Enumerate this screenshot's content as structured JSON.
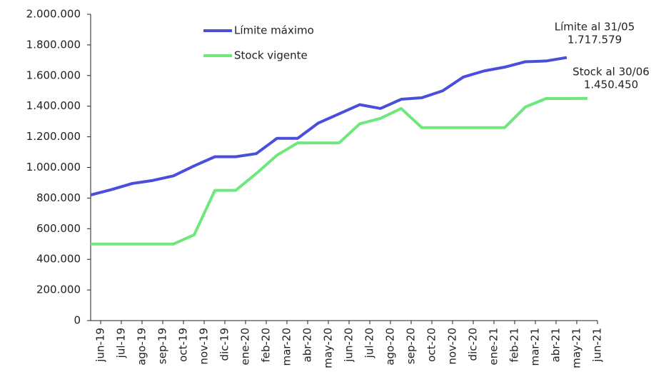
{
  "chart_data": {
    "type": "line",
    "categories": [
      "jun-19",
      "jul-19",
      "ago-19",
      "sep-19",
      "oct-19",
      "nov-19",
      "dic-19",
      "ene-20",
      "feb-20",
      "mar-20",
      "abr-20",
      "may-20",
      "jun-20",
      "jul-20",
      "ago-20",
      "sep-20",
      "oct-20",
      "nov-20",
      "dic-20",
      "ene-21",
      "feb-21",
      "mar-21",
      "abr-21",
      "may-21",
      "jun-21"
    ],
    "series": [
      {
        "name": "Límite máximo",
        "color": "#4b4ddb",
        "values": [
          820000,
          855000,
          895000,
          915000,
          945000,
          1010000,
          1070000,
          1070000,
          1090000,
          1190000,
          1190000,
          1290000,
          1350000,
          1410000,
          1385000,
          1445000,
          1455000,
          1500000,
          1590000,
          1630000,
          1655000,
          1690000,
          1695000,
          1717579,
          null
        ]
      },
      {
        "name": "Stock vigente",
        "color": "#6ee87d",
        "values": [
          500000,
          500000,
          500000,
          500000,
          500000,
          560000,
          850000,
          850000,
          960000,
          1080000,
          1160000,
          1160000,
          1160000,
          1285000,
          1320000,
          1385000,
          1260000,
          1260000,
          1260000,
          1260000,
          1260000,
          1395000,
          1450000,
          1450000,
          1450450
        ]
      }
    ],
    "ylim": [
      0,
      2000000
    ],
    "yticks": [
      0,
      {
        "value": 200000,
        "label": "200.000"
      },
      {
        "value": 400000,
        "label": "400.000"
      },
      {
        "value": 600000,
        "label": "600.000"
      },
      {
        "value": 800000,
        "label": "800.000"
      },
      {
        "value": 1000000,
        "label": "1.000.000"
      },
      {
        "value": 1200000,
        "label": "1.200.000"
      },
      {
        "value": 1400000,
        "label": "1.400.000"
      },
      {
        "value": 1600000,
        "label": "1.600.000"
      },
      {
        "value": 1800000,
        "label": "1.800.000"
      },
      {
        "value": 2000000,
        "label": "2.000.000"
      }
    ],
    "grid": false,
    "legend": "top-left",
    "annotations": [
      {
        "lines": [
          "Límite al 31/05",
          "1.717.579"
        ]
      },
      {
        "lines": [
          "Stock al 30/06",
          "1.450.450"
        ]
      }
    ]
  }
}
